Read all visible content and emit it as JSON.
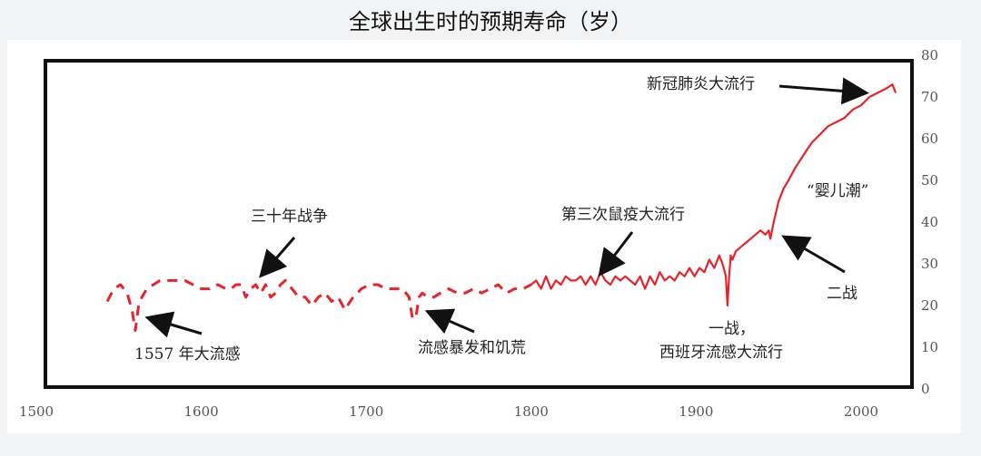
{
  "chart_data": {
    "type": "line",
    "title": "全球出生时的预期寿命（岁）",
    "xlabel": "",
    "ylabel": "",
    "xlim": [
      1500,
      2025
    ],
    "ylim": [
      0,
      80
    ],
    "x_ticks": [
      "1500",
      "1600",
      "1700",
      "1800",
      "1900",
      "2000"
    ],
    "y_ticks": [
      "0",
      "10",
      "20",
      "30",
      "40",
      "50",
      "60",
      "70",
      "80"
    ],
    "y_axis_side": "right",
    "grid": false,
    "line_color": "#e8232a",
    "series": [
      {
        "style": "dashed",
        "x": [
          1543,
          1547,
          1551,
          1555,
          1558,
          1560,
          1562,
          1564,
          1567,
          1571,
          1575,
          1580,
          1585,
          1590,
          1595,
          1600,
          1605,
          1610,
          1615,
          1618,
          1621,
          1624,
          1627,
          1630,
          1633,
          1636,
          1639,
          1642,
          1645,
          1648,
          1651,
          1655,
          1659,
          1663,
          1667,
          1671,
          1675,
          1679,
          1683,
          1687,
          1692,
          1697,
          1702,
          1707,
          1712,
          1717,
          1722,
          1726,
          1728,
          1730,
          1732,
          1734,
          1737,
          1741,
          1745,
          1750,
          1755,
          1760,
          1765,
          1770,
          1775,
          1780,
          1785,
          1790,
          1795,
          1800
        ],
        "y": [
          21,
          24,
          25,
          23,
          19,
          14,
          20,
          22,
          24,
          25,
          26,
          26,
          26,
          26,
          25,
          24,
          24,
          25,
          24,
          24,
          25,
          25,
          22,
          24,
          25,
          23,
          25,
          22,
          23,
          25,
          26,
          24,
          22,
          22,
          20,
          22,
          23,
          21,
          22,
          19,
          22,
          24,
          25,
          25,
          24,
          24,
          24,
          22,
          17,
          17,
          22,
          23,
          22,
          22,
          23,
          24,
          23,
          23,
          24,
          23,
          24,
          25,
          23,
          24,
          24,
          25
        ]
      },
      {
        "style": "solid",
        "x": [
          1800,
          1803,
          1806,
          1809,
          1812,
          1815,
          1818,
          1821,
          1824,
          1827,
          1830,
          1833,
          1836,
          1839,
          1842,
          1845,
          1848,
          1851,
          1854,
          1857,
          1860,
          1863,
          1866,
          1869,
          1872,
          1875,
          1878,
          1881,
          1884,
          1887,
          1890,
          1893,
          1896,
          1899,
          1902,
          1905,
          1908,
          1911,
          1914,
          1916,
          1918,
          1919,
          1920,
          1921,
          1922,
          1924,
          1927,
          1930,
          1933,
          1936,
          1939,
          1942,
          1944,
          1945,
          1947,
          1950,
          1953,
          1956,
          1960,
          1965,
          1970,
          1975,
          1980,
          1985,
          1990,
          1995,
          2000,
          2005,
          2010,
          2015,
          2019,
          2020,
          2021
        ],
        "y": [
          25,
          26,
          24,
          27,
          24,
          26,
          25,
          27,
          26,
          26,
          27,
          25,
          27,
          25,
          28,
          26,
          25,
          27,
          26,
          27,
          26,
          25,
          27,
          24,
          27,
          25,
          28,
          26,
          27,
          26,
          28,
          27,
          29,
          27,
          29,
          28,
          31,
          29,
          32,
          30,
          27,
          20,
          27,
          32,
          31,
          33,
          34,
          35,
          36,
          37,
          38,
          37,
          38,
          36,
          40,
          45,
          48,
          50,
          53,
          56,
          59,
          61,
          63,
          64,
          65,
          67,
          68,
          70,
          71,
          72,
          73,
          72,
          71
        ]
      }
    ],
    "annotations": [
      {
        "text": "1557 年大流感"
      },
      {
        "text": "三十年战争"
      },
      {
        "text": "流感暴发和饥荒"
      },
      {
        "text": "第三次鼠疫大流行"
      },
      {
        "text": "一战，"
      },
      {
        "text": "西班牙流感大流行"
      },
      {
        "text": "新冠肺炎大流行"
      },
      {
        "text": "“婴儿潮”"
      },
      {
        "text": "二战"
      }
    ]
  }
}
